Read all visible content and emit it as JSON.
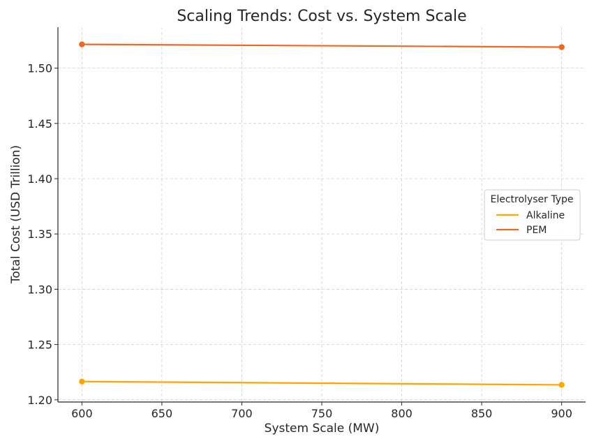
{
  "chart_data": {
    "type": "line",
    "title": "Scaling Trends: Cost vs. System Scale",
    "xlabel": "System Scale (MW)",
    "ylabel": "Total Cost (USD Trillion)",
    "xlim": [
      585,
      915
    ],
    "ylim": [
      1.198,
      1.537
    ],
    "x_ticks": [
      600,
      650,
      700,
      750,
      800,
      850,
      900
    ],
    "y_ticks": [
      1.2,
      1.25,
      1.3,
      1.35,
      1.4,
      1.45,
      1.5
    ],
    "x_tick_labels": [
      "600",
      "650",
      "700",
      "750",
      "800",
      "850",
      "900"
    ],
    "y_tick_labels": [
      "1.20",
      "1.25",
      "1.30",
      "1.35",
      "1.40",
      "1.45",
      "1.50"
    ],
    "grid": true,
    "legend": {
      "title": "Electrolyser Type",
      "placement": "center-right"
    },
    "series": [
      {
        "name": "Alkaline",
        "color": "#FFA500",
        "x": [
          600,
          900
        ],
        "y": [
          1.2165,
          1.2135
        ]
      },
      {
        "name": "PEM",
        "color": "#F26522",
        "x": [
          600,
          900
        ],
        "y": [
          1.5215,
          1.519
        ]
      }
    ]
  }
}
